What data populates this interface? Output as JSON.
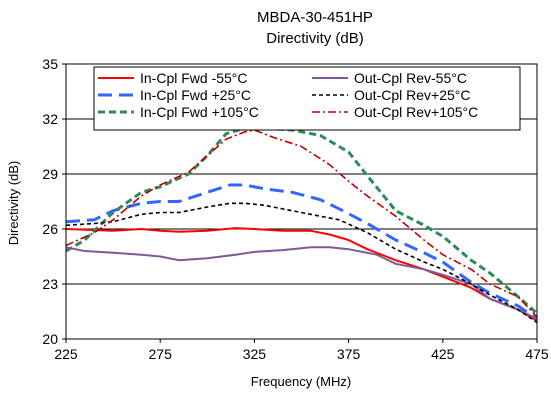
{
  "chart_data": {
    "type": "line",
    "title": "MBDA-30-451HP",
    "subtitle": "Directivity (dB)",
    "xlabel": "Frequency (MHz)",
    "ylabel": "Directivity (dB)",
    "xlim": [
      225,
      475
    ],
    "ylim": [
      20,
      35
    ],
    "xticks": [
      225,
      275,
      325,
      375,
      425,
      475
    ],
    "yticks": [
      20,
      23,
      26,
      29,
      32,
      35
    ],
    "grid": "horizontal",
    "legend_position": "top",
    "series": [
      {
        "name": "In-Cpl Fwd -55°C",
        "color": "#ff0000",
        "dash": "solid",
        "x": [
          225,
          250,
          265,
          275,
          285,
          300,
          315,
          325,
          340,
          355,
          365,
          375,
          385,
          400,
          415,
          425,
          440,
          450,
          465,
          475
        ],
        "y": [
          26.0,
          25.9,
          26.0,
          25.9,
          25.85,
          25.9,
          26.05,
          26.0,
          25.9,
          25.9,
          25.7,
          25.4,
          24.9,
          24.3,
          23.8,
          23.4,
          22.8,
          22.2,
          21.6,
          21.0
        ]
      },
      {
        "name": "In-Cpl Fwd +25°C",
        "color": "#3366ff",
        "dash": "longdash",
        "x": [
          225,
          240,
          250,
          265,
          275,
          285,
          300,
          312,
          320,
          330,
          345,
          360,
          370,
          385,
          400,
          415,
          425,
          440,
          450,
          465,
          475
        ],
        "y": [
          26.4,
          26.5,
          27.0,
          27.4,
          27.5,
          27.5,
          28.0,
          28.4,
          28.4,
          28.2,
          28.0,
          27.6,
          27.1,
          26.3,
          25.4,
          24.7,
          24.2,
          23.1,
          22.5,
          21.8,
          21.1
        ]
      },
      {
        "name": "In-Cpl Fwd +105°C",
        "color": "#2e8b57",
        "dash": "dash",
        "x": [
          225,
          235,
          250,
          265,
          275,
          290,
          300,
          310,
          320,
          330,
          345,
          360,
          375,
          385,
          400,
          415,
          425,
          440,
          450,
          465,
          475
        ],
        "y": [
          24.8,
          25.4,
          26.9,
          28.0,
          28.3,
          29.0,
          30.0,
          31.2,
          31.5,
          31.5,
          31.4,
          31.1,
          30.2,
          28.9,
          27.0,
          26.2,
          25.6,
          24.3,
          23.6,
          22.3,
          21.4
        ]
      },
      {
        "name": "Out-Cpl Rev-55°C",
        "color": "#7e5a9b",
        "dash": "solid",
        "x": [
          225,
          235,
          250,
          265,
          275,
          285,
          300,
          315,
          325,
          340,
          355,
          365,
          375,
          390,
          400,
          415,
          425,
          440,
          450,
          465,
          475
        ],
        "y": [
          25.0,
          24.8,
          24.7,
          24.6,
          24.5,
          24.3,
          24.4,
          24.6,
          24.75,
          24.85,
          25.0,
          25.0,
          24.9,
          24.6,
          24.1,
          23.8,
          23.5,
          23.0,
          22.2,
          21.6,
          21.1
        ]
      },
      {
        "name": "Out-Cpl Rev+25°C",
        "color": "#000000",
        "dash": "shortdash",
        "x": [
          225,
          240,
          250,
          265,
          275,
          285,
          300,
          312,
          320,
          330,
          345,
          360,
          370,
          385,
          400,
          415,
          425,
          440,
          450,
          465,
          475
        ],
        "y": [
          26.2,
          26.3,
          26.4,
          26.8,
          26.9,
          26.9,
          27.2,
          27.4,
          27.4,
          27.3,
          27.0,
          26.7,
          26.5,
          25.8,
          24.9,
          24.2,
          23.8,
          23.0,
          22.4,
          21.6,
          20.9
        ]
      },
      {
        "name": "Out-Cpl Rev+105°C",
        "color": "#c00000",
        "dash": "dashdot",
        "x": [
          225,
          240,
          250,
          265,
          275,
          290,
          300,
          310,
          320,
          325,
          335,
          350,
          365,
          375,
          385,
          400,
          415,
          425,
          440,
          450,
          465,
          475
        ],
        "y": [
          25.1,
          25.8,
          26.5,
          27.8,
          28.4,
          29.1,
          30.0,
          30.9,
          31.3,
          31.4,
          31.0,
          30.5,
          29.5,
          28.6,
          27.8,
          26.7,
          25.4,
          24.6,
          23.8,
          23.0,
          22.3,
          21.2
        ]
      }
    ]
  }
}
